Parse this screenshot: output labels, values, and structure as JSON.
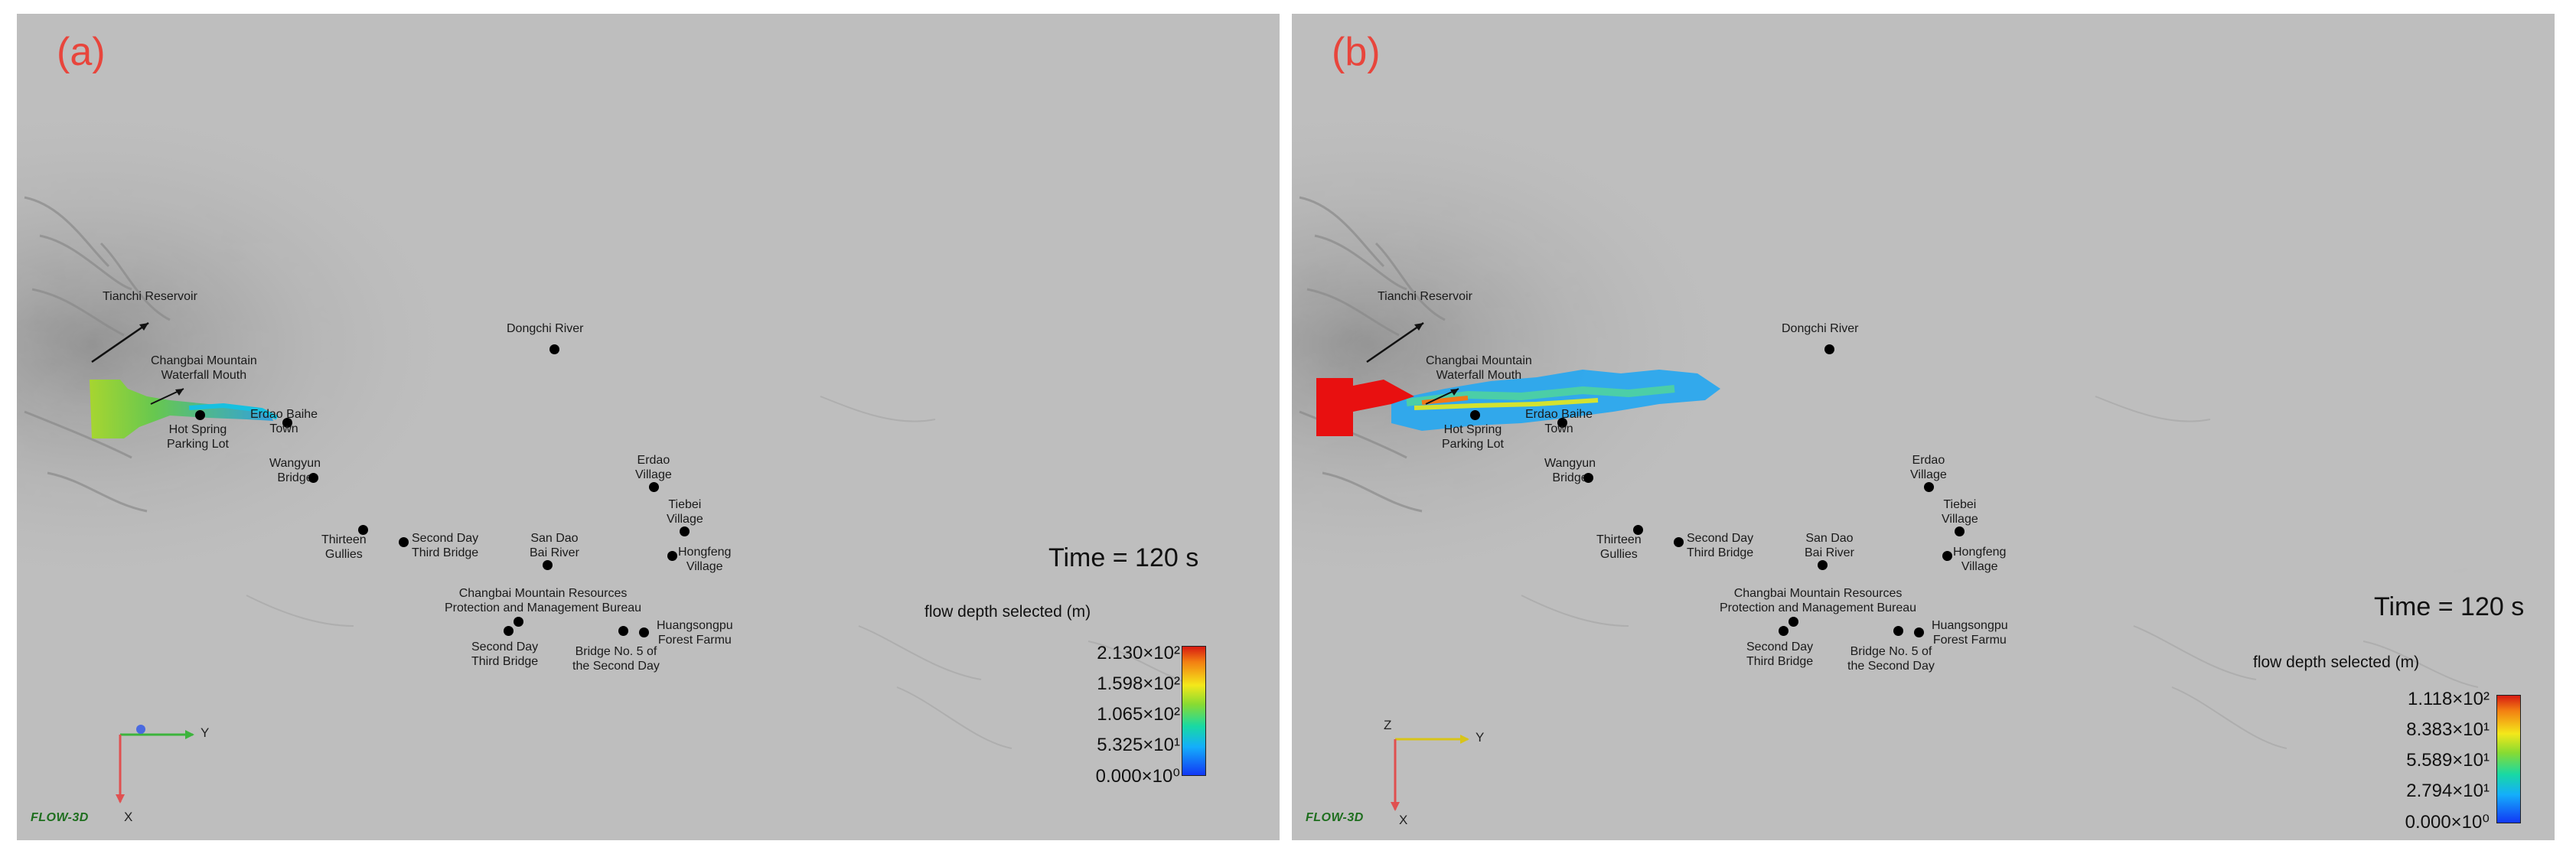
{
  "panels": [
    {
      "label": "(a)",
      "time_text": "Time = 120 s",
      "legend_title": "flow depth selected (m)",
      "legend_ticks": [
        "2.130×10²",
        "1.598×10²",
        "1.065×10²",
        "5.325×10¹",
        "0.000×10⁰"
      ],
      "axis": {
        "y": "Y",
        "x": "X"
      },
      "logo": "FLOW-3D",
      "places": {
        "tianchi": "Tianchi Reservoir",
        "dongchi": "Dongchi River",
        "waterfall": "Changbai Mountain\nWaterfall Mouth",
        "hotspring": "Hot Spring\nParking Lot",
        "erdao_baihe": "Erdao Baihe\nTown",
        "wangyun": "Wangyun\nBridge",
        "erdao_village": "Erdao\nVillage",
        "tiebei": "Tiebei\nVillage",
        "hongfeng": "Hongfeng\nVillage",
        "thirteen": "Thirteen\nGullies",
        "second_day_third": "Second Day\nThird Bridge",
        "san_dao": "San Dao\nBai River",
        "bureau": "Changbai Mountain Resources\nProtection and Management Bureau",
        "second_day_third_2": "Second Day\nThird Bridge",
        "bridge5": "Bridge No. 5 of\nthe Second Day",
        "huangsongpu": "Huangsongpu\nForest Farmu"
      }
    },
    {
      "label": "(b)",
      "time_text": "Time = 120 s",
      "legend_title": "flow depth selected (m)",
      "legend_ticks": [
        "1.118×10²",
        "8.383×10¹",
        "5.589×10¹",
        "2.794×10¹",
        "0.000×10⁰"
      ],
      "axis": {
        "z": "Z",
        "y": "Y",
        "x": "X"
      },
      "logo": "FLOW-3D",
      "places": {
        "tianchi": "Tianchi Reservoir",
        "dongchi": "Dongchi River",
        "waterfall": "Changbai Mountain\nWaterfall Mouth",
        "hotspring": "Hot Spring\nParking Lot",
        "erdao_baihe": "Erdao Baihe\nTown",
        "wangyun": "Wangyun\nBridge",
        "erdao_village": "Erdao\nVillage",
        "tiebei": "Tiebei\nVillage",
        "hongfeng": "Hongfeng\nVillage",
        "thirteen": "Thirteen\nGullies",
        "second_day_third": "Second Day\nThird Bridge",
        "san_dao": "San Dao\nBai River",
        "bureau": "Changbai Mountain Resources\nProtection and Management Bureau",
        "second_day_third_2": "Second Day\nThird Bridge",
        "bridge5": "Bridge No. 5 of\nthe Second Day",
        "huangsongpu": "Huangsongpu\nForest Farmu"
      }
    }
  ],
  "colors": {
    "terrain": "#bdbdbd",
    "label": "#e8453c",
    "flow_high": "#e81010",
    "flow_mid": "#f2e81a",
    "flow_low": "#1aa8f0"
  }
}
